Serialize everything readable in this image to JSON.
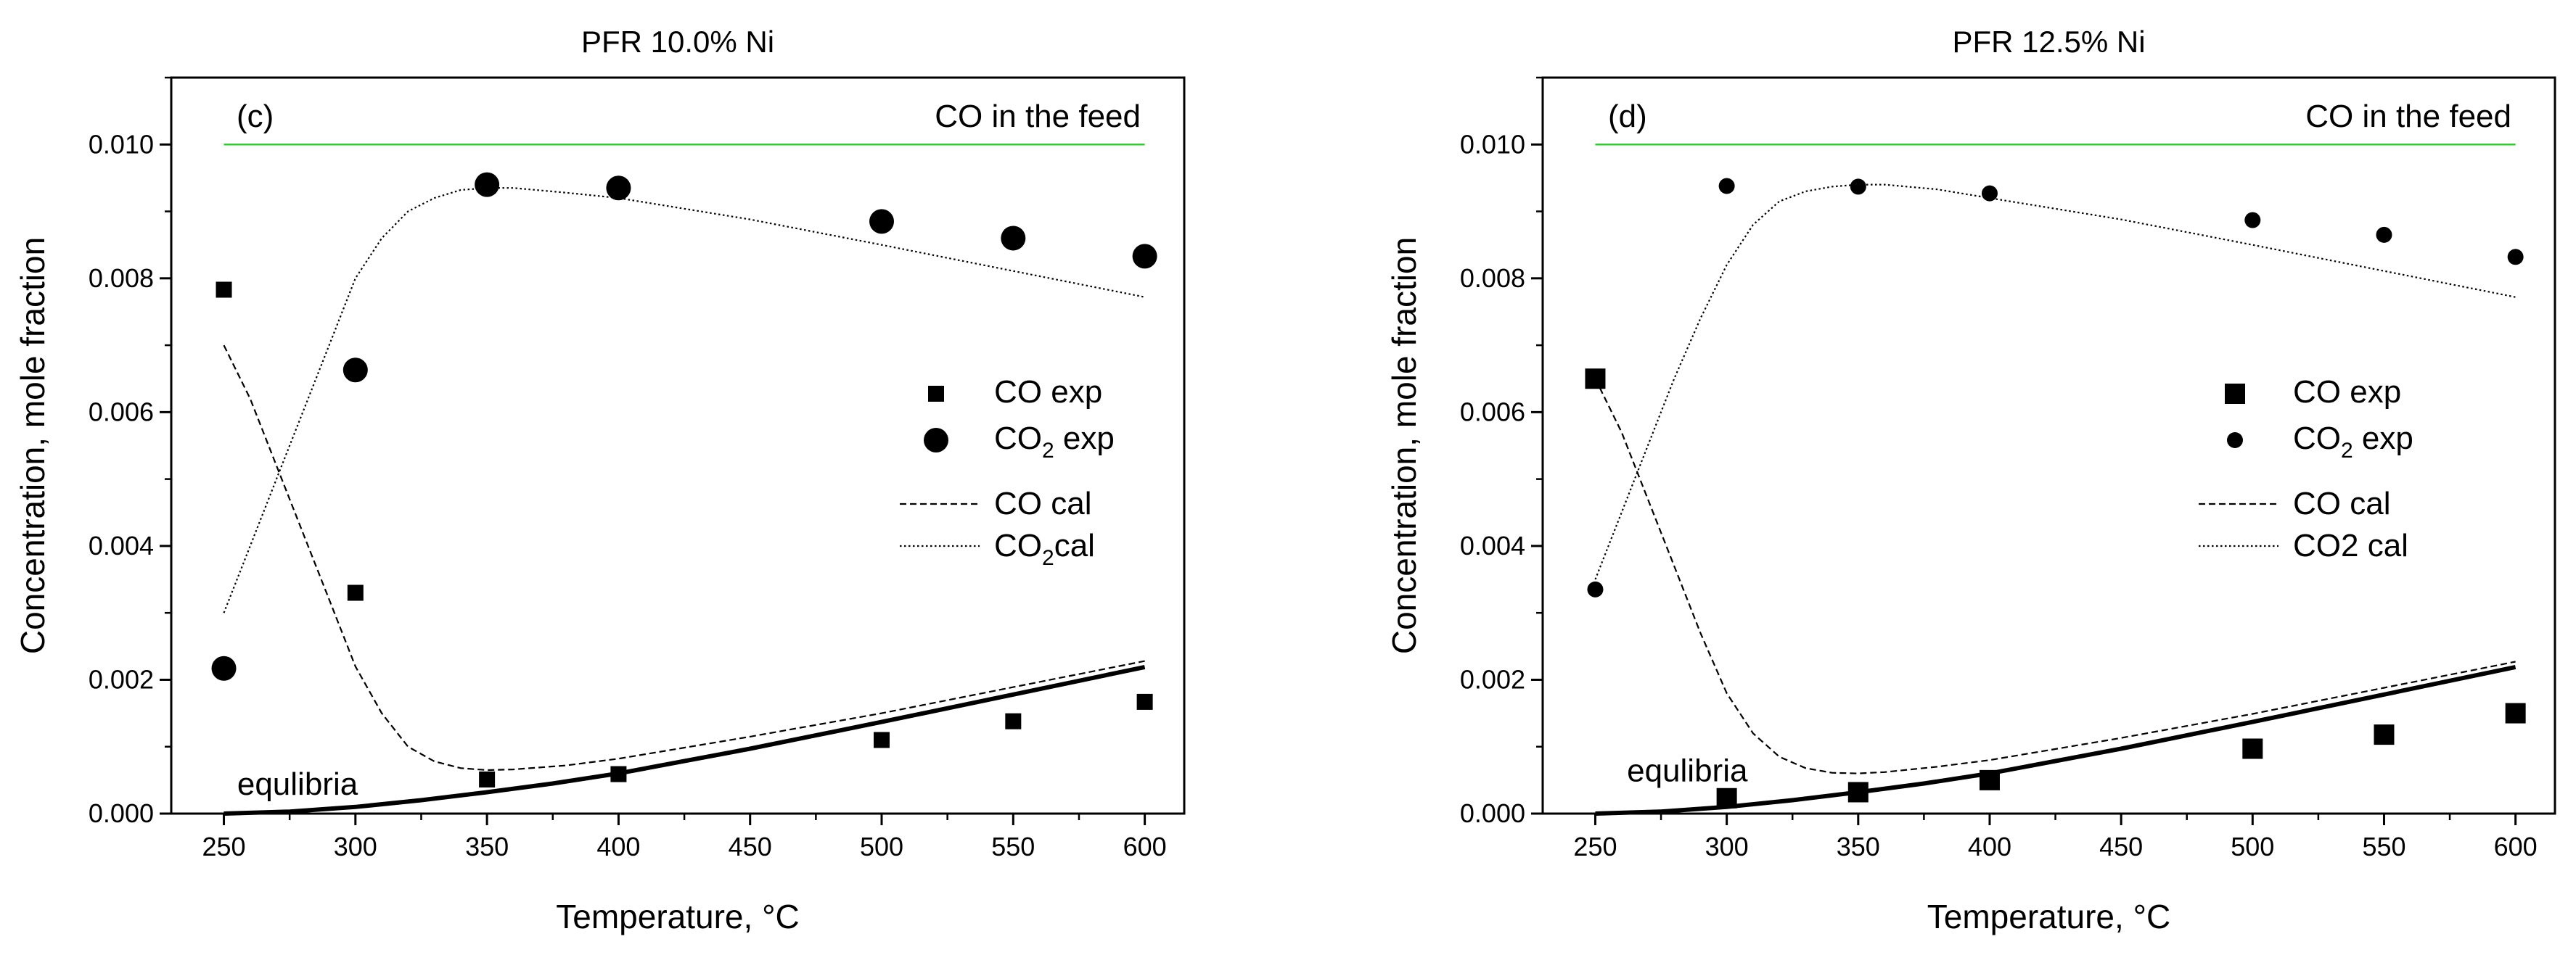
{
  "figure_colors": {
    "feed_line": "#2ecc2e",
    "ink": "#000000"
  },
  "chart_data": [
    {
      "type": "scatter",
      "title": "PFR 10.0% Ni",
      "panel_label": "(c)",
      "xlabel": "Temperature, °C",
      "ylabel": "Concentration, mole fraction",
      "xlim": [
        230,
        615
      ],
      "ylim": [
        0,
        0.011
      ],
      "xticks": [
        250,
        300,
        350,
        400,
        450,
        500,
        550,
        600
      ],
      "yticks": [
        0.0,
        0.002,
        0.004,
        0.006,
        0.008,
        0.01
      ],
      "feed_label": "CO in the feed",
      "feed_value": 0.01,
      "equilibria_label": "equlibria",
      "legend": {
        "position": "center-right",
        "co_exp": "CO exp",
        "co2_exp": "CO2 exp",
        "co_cal": "CO cal",
        "co2_cal": "CO2cal"
      },
      "series": [
        {
          "name": "CO exp",
          "kind": "square",
          "size": "small",
          "x": [
            250,
            300,
            350,
            400,
            500,
            550,
            600
          ],
          "y": [
            0.00783,
            0.0033,
            0.00051,
            0.00059,
            0.0011,
            0.00138,
            0.00167
          ]
        },
        {
          "name": "CO2 exp",
          "kind": "circle",
          "size": "large",
          "x": [
            250,
            300,
            350,
            400,
            500,
            550,
            600
          ],
          "y": [
            0.00217,
            0.00663,
            0.0094,
            0.00935,
            0.00885,
            0.0086,
            0.00833
          ]
        },
        {
          "name": "CO cal",
          "kind": "dashed",
          "x": [
            250,
            260,
            270,
            280,
            290,
            300,
            310,
            320,
            330,
            340,
            350,
            360,
            380,
            400,
            450,
            500,
            550,
            600
          ],
          "y": [
            0.007,
            0.0062,
            0.0052,
            0.0042,
            0.0032,
            0.0022,
            0.0015,
            0.001,
            0.00078,
            0.00068,
            0.00065,
            0.00066,
            0.00072,
            0.00082,
            0.00115,
            0.0015,
            0.00189,
            0.00228
          ]
        },
        {
          "name": "CO2 cal",
          "kind": "dotted",
          "x": [
            250,
            260,
            270,
            280,
            290,
            300,
            310,
            320,
            330,
            340,
            350,
            360,
            380,
            400,
            450,
            500,
            550,
            600
          ],
          "y": [
            0.003,
            0.004,
            0.005,
            0.006,
            0.007,
            0.008,
            0.0086,
            0.009,
            0.0092,
            0.00932,
            0.00935,
            0.00935,
            0.00928,
            0.0092,
            0.00888,
            0.0085,
            0.00811,
            0.00772
          ]
        },
        {
          "name": "equilibria",
          "kind": "thick",
          "x": [
            250,
            275,
            300,
            325,
            350,
            375,
            400,
            450,
            500,
            550,
            600
          ],
          "y": [
            0.0,
            3e-05,
            0.0001,
            0.0002,
            0.00032,
            0.00045,
            0.0006,
            0.00097,
            0.00137,
            0.00178,
            0.00219
          ]
        }
      ]
    },
    {
      "type": "scatter",
      "title": "PFR 12.5% Ni",
      "panel_label": "(d)",
      "xlabel": "Temperature, °C",
      "ylabel": "Concentration, mole fraction",
      "xlim": [
        230,
        615
      ],
      "ylim": [
        0,
        0.011
      ],
      "xticks": [
        250,
        300,
        350,
        400,
        450,
        500,
        550,
        600
      ],
      "yticks": [
        0.0,
        0.002,
        0.004,
        0.006,
        0.008,
        0.01
      ],
      "feed_label": "CO in the feed",
      "feed_value": 0.01,
      "equilibria_label": "equlibria",
      "legend": {
        "position": "center-right",
        "co_exp": "CO exp",
        "co2_exp": "CO2 exp",
        "co_cal": "CO cal",
        "co2_cal": "CO2 cal"
      },
      "series": [
        {
          "name": "CO exp",
          "kind": "square",
          "size": "large",
          "x": [
            250,
            300,
            350,
            400,
            500,
            550,
            600
          ],
          "y": [
            0.0065,
            0.00023,
            0.00032,
            0.0005,
            0.00097,
            0.00118,
            0.0015
          ]
        },
        {
          "name": "CO2 exp",
          "kind": "circle",
          "size": "small",
          "x": [
            250,
            300,
            350,
            400,
            500,
            550,
            600
          ],
          "y": [
            0.00335,
            0.00938,
            0.00937,
            0.00927,
            0.00887,
            0.00865,
            0.00832
          ]
        },
        {
          "name": "CO cal",
          "kind": "dashed",
          "x": [
            250,
            260,
            270,
            280,
            290,
            300,
            310,
            320,
            330,
            340,
            350,
            360,
            380,
            400,
            450,
            500,
            550,
            600
          ],
          "y": [
            0.0065,
            0.0057,
            0.0047,
            0.0037,
            0.0027,
            0.0018,
            0.0012,
            0.00085,
            0.00068,
            0.00061,
            0.0006,
            0.00062,
            0.0007,
            0.0008,
            0.00113,
            0.00149,
            0.00188,
            0.00227
          ]
        },
        {
          "name": "CO2 cal",
          "kind": "dotted",
          "x": [
            250,
            260,
            270,
            280,
            290,
            300,
            310,
            320,
            330,
            340,
            350,
            360,
            380,
            400,
            450,
            500,
            550,
            600
          ],
          "y": [
            0.0035,
            0.0045,
            0.0055,
            0.0065,
            0.0074,
            0.0082,
            0.0088,
            0.00915,
            0.0093,
            0.00937,
            0.0094,
            0.0094,
            0.00933,
            0.0092,
            0.00888,
            0.0085,
            0.00811,
            0.00772
          ]
        },
        {
          "name": "equilibria",
          "kind": "thick",
          "x": [
            250,
            275,
            300,
            325,
            350,
            375,
            400,
            450,
            500,
            550,
            600
          ],
          "y": [
            0.0,
            3e-05,
            0.0001,
            0.0002,
            0.00032,
            0.00045,
            0.0006,
            0.00097,
            0.00137,
            0.00178,
            0.00219
          ]
        }
      ]
    }
  ]
}
